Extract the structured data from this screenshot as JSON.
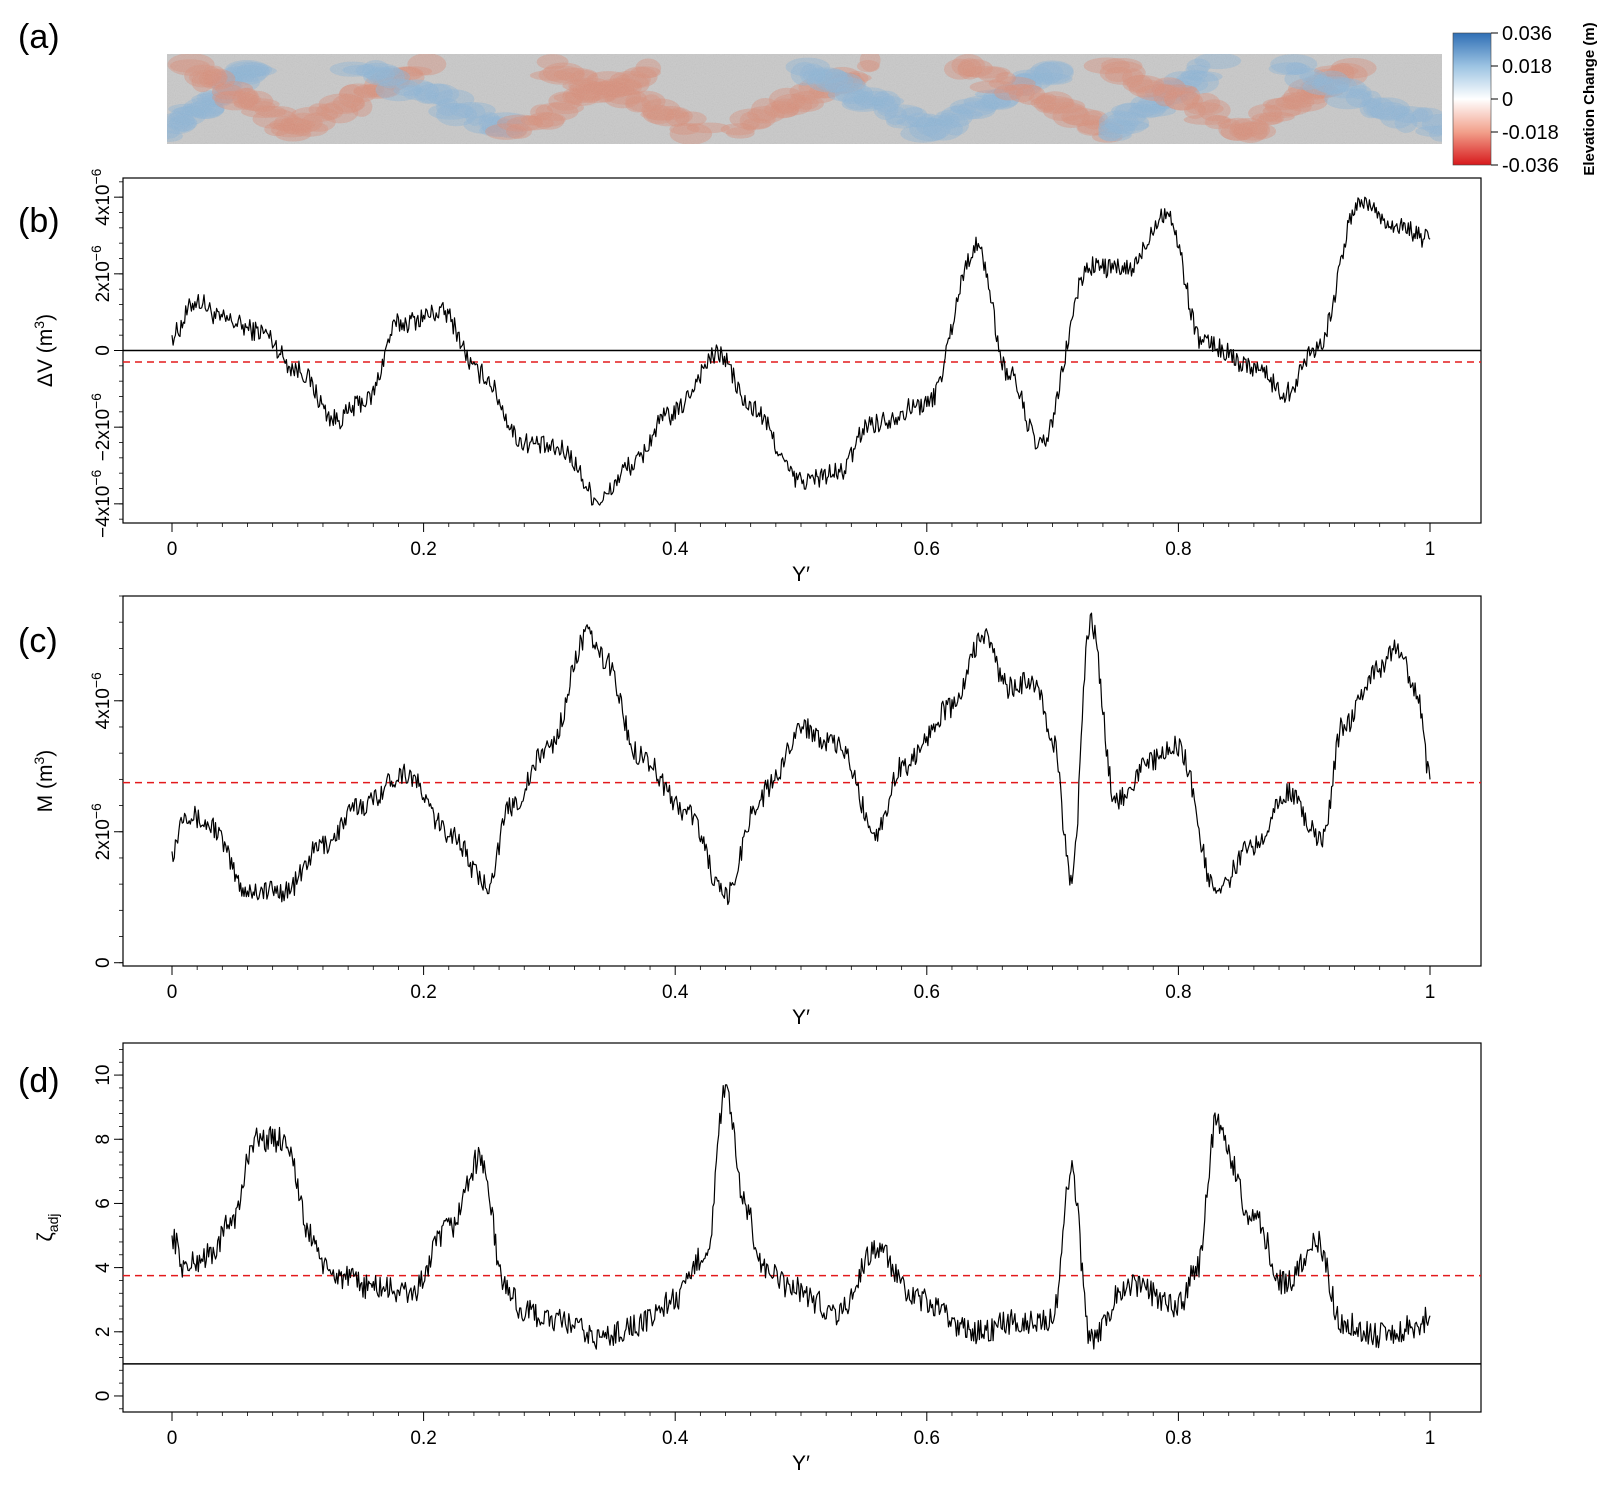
{
  "panels": {
    "a": "(a)",
    "b": "(b)",
    "c": "(c)",
    "d": "(d)"
  },
  "colorbar": {
    "title": "Elevation Change (m)",
    "ticks": [
      "0.036",
      "0.018",
      "0",
      "-0.018",
      "-0.036"
    ],
    "colors": [
      "#2f6fb5",
      "#9cc3e2",
      "#ffffff",
      "#f2a08b",
      "#d7191c"
    ]
  },
  "terrain_colors": {
    "base": "#c9c9c9",
    "deposition": "#8fb6d6",
    "erosion": "#d9907c"
  },
  "chart_data": [
    {
      "id": "b",
      "type": "line",
      "xlabel": "Y′",
      "ylabel": "ΔV (m",
      "ylabel_sup": "3",
      "ylabel_end": ")",
      "xlim": [
        0,
        1
      ],
      "ylim": [
        -4.5e-06,
        4.5e-06
      ],
      "x_ticks": [
        "0",
        "0.2",
        "0.4",
        "0.6",
        "0.8",
        "1"
      ],
      "y_ticks": [
        {
          "value": -4e-06,
          "label": "−4x10",
          "exp": "−6"
        },
        {
          "value": -2e-06,
          "label": "−2x10",
          "exp": "−6"
        },
        {
          "value": 0,
          "label": "0",
          "exp": ""
        },
        {
          "value": 2e-06,
          "label": "2x10",
          "exp": "−6"
        },
        {
          "value": 4e-06,
          "label": "4x10",
          "exp": "−6"
        }
      ],
      "ref_line": {
        "value": 0,
        "color": "#000000"
      },
      "mean_line": {
        "value": -3e-07,
        "color": "#e31a1c"
      },
      "series": [
        {
          "x": [
            0,
            0.02,
            0.04,
            0.07,
            0.1,
            0.13,
            0.155,
            0.18,
            0.215,
            0.245,
            0.28,
            0.31,
            0.34,
            0.365,
            0.395,
            0.435,
            0.46,
            0.5,
            0.53,
            0.555,
            0.6,
            0.64,
            0.665,
            0.69,
            0.73,
            0.76,
            0.79,
            0.82,
            0.86,
            0.885,
            0.91,
            0.945,
            0.97,
            1.0
          ],
          "y": [
            4e-07,
            1.3e-06,
            8e-07,
            5e-07,
            -5e-07,
            -1.8e-06,
            -1.3e-06,
            7e-07,
            1e-06,
            -6e-07,
            -2.4e-06,
            -2.6e-06,
            -3.9e-06,
            -3e-06,
            -1.7e-06,
            -1e-07,
            -1.5e-06,
            -3.4e-06,
            -3.2e-06,
            -1.9e-06,
            -1.4e-06,
            2.7e-06,
            -6e-07,
            -2.5e-06,
            2.2e-06,
            2.1e-06,
            3.6e-06,
            2e-07,
            -4e-07,
            -1.1e-06,
            1e-07,
            3.9e-06,
            3.3e-06,
            2.9e-06
          ]
        }
      ]
    },
    {
      "id": "c",
      "type": "line",
      "xlabel": "Y′",
      "ylabel": "M (m",
      "ylabel_sup": "3",
      "ylabel_end": ")",
      "xlim": [
        0,
        1
      ],
      "ylim": [
        -5e-08,
        5.6e-06
      ],
      "x_ticks": [
        "0",
        "0.2",
        "0.4",
        "0.6",
        "0.8",
        "1"
      ],
      "y_ticks": [
        {
          "value": 0,
          "label": "0",
          "exp": ""
        },
        {
          "value": 2e-06,
          "label": "2x10",
          "exp": "−6"
        },
        {
          "value": 4e-06,
          "label": "4x10",
          "exp": "−6"
        }
      ],
      "mean_line": {
        "value": 2.75e-06,
        "color": "#e31a1c"
      },
      "series": [
        {
          "x": [
            0,
            0.01,
            0.03,
            0.06,
            0.09,
            0.12,
            0.15,
            0.185,
            0.22,
            0.25,
            0.27,
            0.3,
            0.33,
            0.345,
            0.37,
            0.41,
            0.44,
            0.465,
            0.475,
            0.5,
            0.53,
            0.56,
            0.58,
            0.62,
            0.645,
            0.665,
            0.685,
            0.7,
            0.715,
            0.73,
            0.75,
            0.78,
            0.8,
            0.83,
            0.86,
            0.885,
            0.915,
            0.93,
            0.96,
            0.975,
            0.99,
            1.0
          ],
          "y": [
            1.7e-06,
            2.3e-06,
            2.1e-06,
            1.1e-06,
            1.1e-06,
            1.8e-06,
            2.4e-06,
            2.9e-06,
            2e-06,
            1.2e-06,
            2.4e-06,
            3.3e-06,
            5e-06,
            4.6e-06,
            3.2e-06,
            2.3e-06,
            1e-06,
            2.4e-06,
            2.7e-06,
            3.6e-06,
            3.3e-06,
            2e-06,
            3e-06,
            3.9e-06,
            5e-06,
            4.2e-06,
            4.3e-06,
            3.4e-06,
            1.3e-06,
            5.2e-06,
            2.5e-06,
            3.1e-06,
            3.3e-06,
            1.1e-06,
            1.8e-06,
            2.6e-06,
            1.9e-06,
            3.6e-06,
            4.5e-06,
            4.8e-06,
            4.1e-06,
            2.8e-06
          ]
        }
      ]
    },
    {
      "id": "d",
      "type": "line",
      "xlabel": "Y′",
      "ylabel": "ζ",
      "ylabel_sub": "adj",
      "xlim": [
        0,
        1
      ],
      "ylim": [
        -0.5,
        11
      ],
      "x_ticks": [
        "0",
        "0.2",
        "0.4",
        "0.6",
        "0.8",
        "1"
      ],
      "y_ticks": [
        {
          "value": 0,
          "label": "0",
          "exp": ""
        },
        {
          "value": 2,
          "label": "2",
          "exp": ""
        },
        {
          "value": 4,
          "label": "4",
          "exp": ""
        },
        {
          "value": 6,
          "label": "6",
          "exp": ""
        },
        {
          "value": 8,
          "label": "8",
          "exp": ""
        },
        {
          "value": 10,
          "label": "10",
          "exp": ""
        }
      ],
      "ref_line": {
        "value": 1,
        "color": "#000000"
      },
      "mean_line": {
        "value": 3.75,
        "color": "#e31a1c"
      },
      "series": [
        {
          "x": [
            0,
            0.01,
            0.03,
            0.05,
            0.065,
            0.09,
            0.11,
            0.125,
            0.16,
            0.19,
            0.22,
            0.245,
            0.265,
            0.28,
            0.31,
            0.34,
            0.37,
            0.4,
            0.425,
            0.44,
            0.455,
            0.47,
            0.49,
            0.53,
            0.56,
            0.59,
            0.64,
            0.67,
            0.7,
            0.715,
            0.73,
            0.76,
            0.8,
            0.815,
            0.83,
            0.86,
            0.885,
            0.91,
            0.93,
            0.96,
            0.99,
            1.0
          ],
          "y": [
            5,
            4,
            4.4,
            5.6,
            8,
            8,
            5,
            3.8,
            3.4,
            3.2,
            5.2,
            7.4,
            3.4,
            2.6,
            2.3,
            1.8,
            2.2,
            3,
            4.5,
            9.5,
            6,
            4,
            3.4,
            2.6,
            4.6,
            3,
            2,
            2.3,
            2.4,
            7,
            1.8,
            3.5,
            2.8,
            4,
            8.5,
            5.5,
            3.5,
            4.8,
            2.3,
            1.9,
            2.2,
            2.5
          ]
        }
      ]
    }
  ]
}
